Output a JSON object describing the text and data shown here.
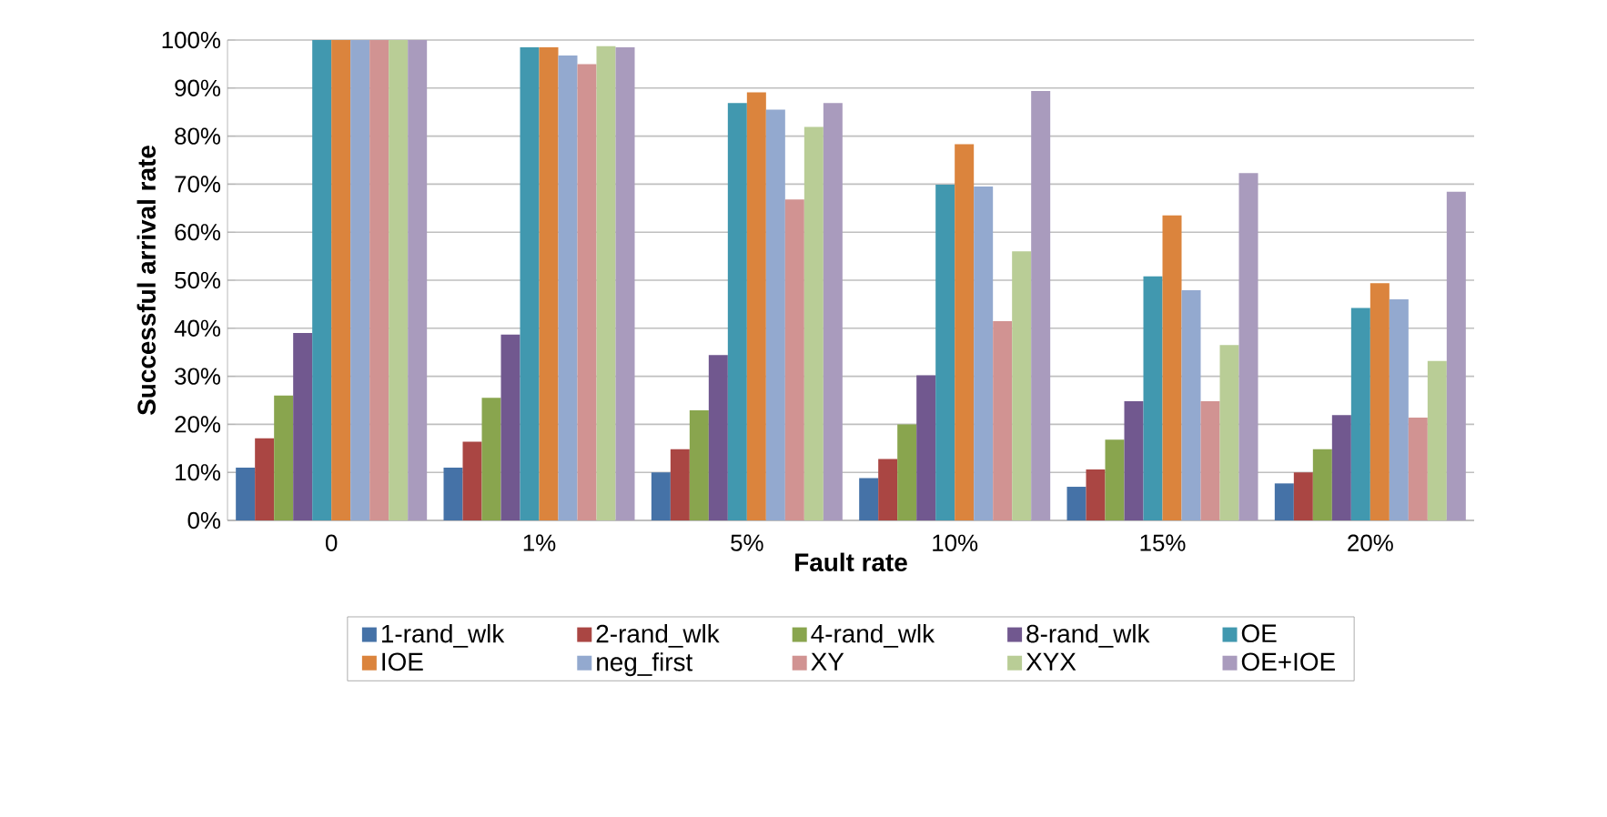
{
  "chart_data": {
    "type": "bar",
    "xlabel": "Fault rate",
    "ylabel": "Successful arrival rate",
    "categories": [
      "0",
      "1%",
      "5%",
      "10%",
      "15%",
      "20%"
    ],
    "ylim": [
      0,
      100
    ],
    "yticks": [
      {
        "value": 0,
        "label": "0%"
      },
      {
        "value": 10,
        "label": "10%"
      },
      {
        "value": 20,
        "label": "20%"
      },
      {
        "value": 30,
        "label": "30%"
      },
      {
        "value": 40,
        "label": "40%"
      },
      {
        "value": 50,
        "label": "50%"
      },
      {
        "value": 60,
        "label": "60%"
      },
      {
        "value": 70,
        "label": "70%"
      },
      {
        "value": 80,
        "label": "80%"
      },
      {
        "value": 90,
        "label": "90%"
      },
      {
        "value": 100,
        "label": "100%"
      }
    ],
    "grid": "y",
    "legend": "bottom",
    "series": [
      {
        "name": "1-rand_wlk",
        "color": "#4572a7",
        "values": [
          11,
          11,
          10,
          8.8,
          7,
          7.7
        ]
      },
      {
        "name": "2-rand_wlk",
        "color": "#aa4643",
        "values": [
          17.1,
          16.4,
          14.8,
          12.8,
          10.6,
          10
        ]
      },
      {
        "name": "4-rand_wlk",
        "color": "#89a54e",
        "values": [
          26,
          25.5,
          22.9,
          20,
          16.8,
          14.8
        ]
      },
      {
        "name": "8-rand_wlk",
        "color": "#71588f",
        "values": [
          39,
          38.7,
          34.4,
          30.2,
          24.8,
          21.9
        ]
      },
      {
        "name": "OE",
        "color": "#4198af",
        "values": [
          100,
          98.5,
          86.9,
          69.9,
          50.8,
          44.2
        ]
      },
      {
        "name": "IOE",
        "color": "#db843d",
        "values": [
          100,
          98.5,
          89.1,
          78.3,
          63.5,
          49.4
        ]
      },
      {
        "name": "neg_first",
        "color": "#93a9cf",
        "values": [
          100,
          96.8,
          85.5,
          69.5,
          47.9,
          46
        ]
      },
      {
        "name": "XY",
        "color": "#d19392",
        "values": [
          100,
          95,
          66.8,
          41.5,
          24.8,
          21.4
        ]
      },
      {
        "name": "XYX",
        "color": "#b9cd96",
        "values": [
          100,
          98.7,
          81.9,
          56,
          36.5,
          33.2
        ]
      },
      {
        "name": "OE+IOE",
        "color": "#a99bbd",
        "values": [
          100,
          98.5,
          86.9,
          89.4,
          72.3,
          68.4
        ]
      }
    ]
  }
}
